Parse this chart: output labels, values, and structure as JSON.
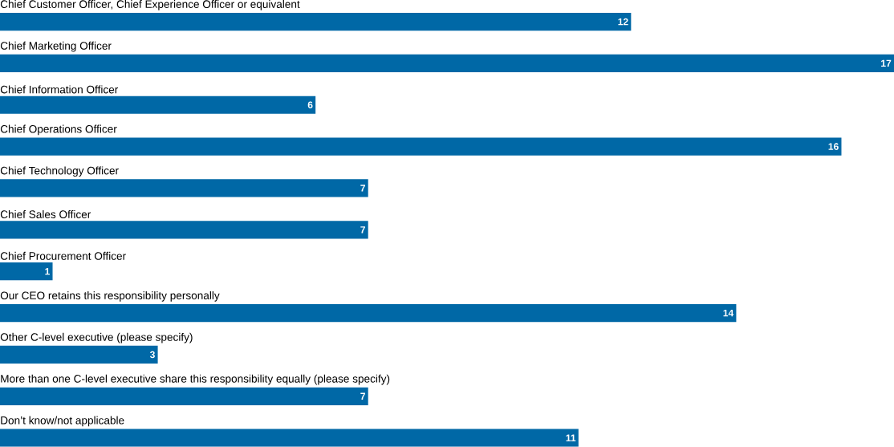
{
  "chart_data": {
    "type": "bar",
    "orientation": "horizontal",
    "data_labels": true,
    "color": "#0068a6",
    "categories": [
      "Chief Customer Officer, Chief Experience Officer or equivalent",
      "Chief Marketing Officer",
      "Chief Information Officer",
      "Chief Operations Officer",
      "Chief Technology Officer",
      "Chief Sales Officer",
      "Chief Procurement Officer",
      "Our CEO retains this responsibility personally",
      "Other C-level executive (please specify)",
      "More than one C-level executive share this responsibility equally (please specify)",
      "Don’t know/not applicable"
    ],
    "values": [
      12,
      17,
      6,
      16,
      7,
      7,
      1,
      14,
      3,
      7,
      11
    ]
  }
}
